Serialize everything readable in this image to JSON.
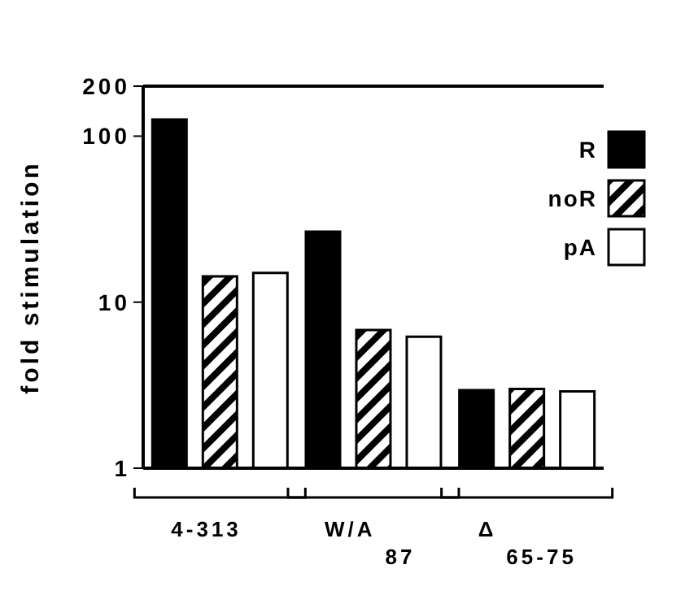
{
  "chart_data": {
    "type": "bar",
    "ylabel": "fold  stimulation",
    "categories": [
      "4-313",
      "W/A$_{87}$",
      "Δ$_{65-75}$"
    ],
    "series": [
      {
        "name": "R",
        "color": "#000000",
        "values": [
          126,
          26.6,
          2.95
        ]
      },
      {
        "name": "noR",
        "color": "#000000",
        "values": [
          14.3,
          6.8,
          3.0
        ]
      },
      {
        "name": "pA",
        "color": "#ffffff",
        "values": [
          15,
          6.2,
          2.9
        ]
      }
    ],
    "log": true,
    "ylim": [
      1,
      200
    ],
    "yticks": [
      1,
      10,
      100,
      200
    ],
    "grid": false,
    "legend": "top right"
  }
}
